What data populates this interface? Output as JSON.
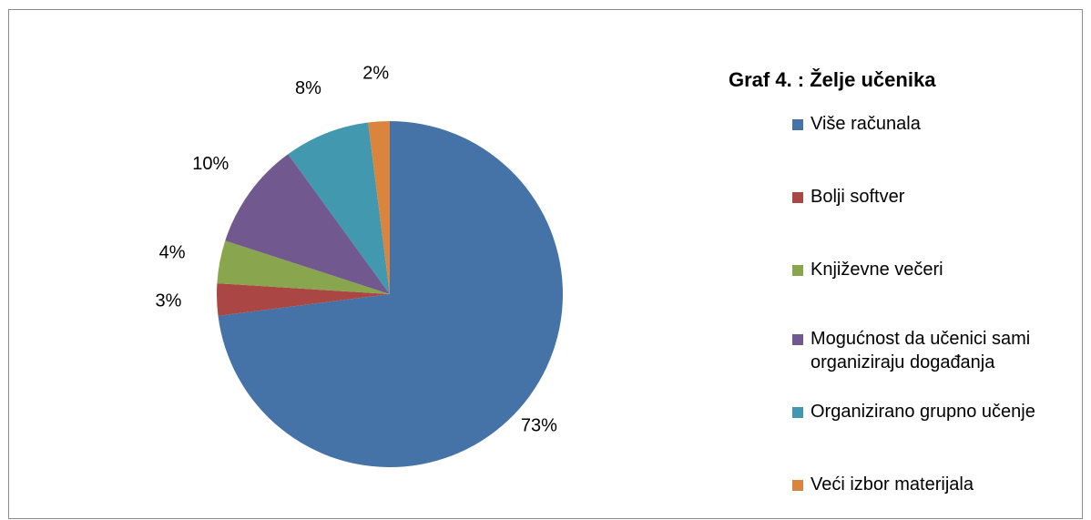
{
  "chart_data": {
    "type": "pie",
    "title": "Graf 4. : Želje učenika",
    "categories": [
      "Više računala",
      "Bolji softver",
      "Književne večeri",
      "Mogućnost da učenici sami organiziraju događanja",
      "Organizirano grupno učenje",
      "Veći izbor materijala"
    ],
    "values": [
      73,
      3,
      4,
      10,
      8,
      2
    ],
    "data_labels": [
      "73%",
      "3%",
      "4%",
      "10%",
      "8%",
      "2%"
    ],
    "colors": [
      "#4572a7",
      "#aa4643",
      "#89a54e",
      "#71588f",
      "#4198af",
      "#db843d"
    ],
    "legend_position": "right",
    "legend_lines": [
      [
        "Više računala"
      ],
      [
        "Bolji softver"
      ],
      [
        "Književne večeri"
      ],
      [
        "Mogućnost da učenici sami",
        "organiziraju događanja"
      ],
      [
        "Organizirano grupno učenje"
      ],
      [
        "Veći izbor materijala"
      ]
    ]
  }
}
